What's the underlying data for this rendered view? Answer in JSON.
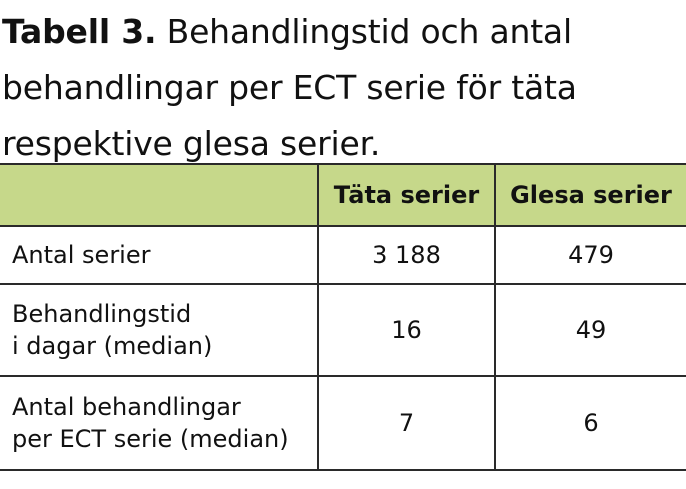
{
  "caption": {
    "label": "Tabell 3.",
    "text": "Behandlingstid och antal behandlingar per ECT serie för täta respektive glesa serier."
  },
  "table": {
    "header": {
      "col0": "",
      "col1": "Täta serier",
      "col2": "Glesa serier"
    },
    "rows": [
      {
        "label_line1": "Antal serier",
        "label_line2": "",
        "tata": "3 188",
        "glesa": "479"
      },
      {
        "label_line1": "Behandlingstid",
        "label_line2": "i dagar (median)",
        "tata": "16",
        "glesa": "49"
      },
      {
        "label_line1": "Antal behandlingar",
        "label_line2": "per ECT serie (median)",
        "tata": "7",
        "glesa": "6"
      }
    ]
  },
  "colors": {
    "header_background": "#c6d88a",
    "rule": "#2a2a2a",
    "text": "#111111"
  }
}
